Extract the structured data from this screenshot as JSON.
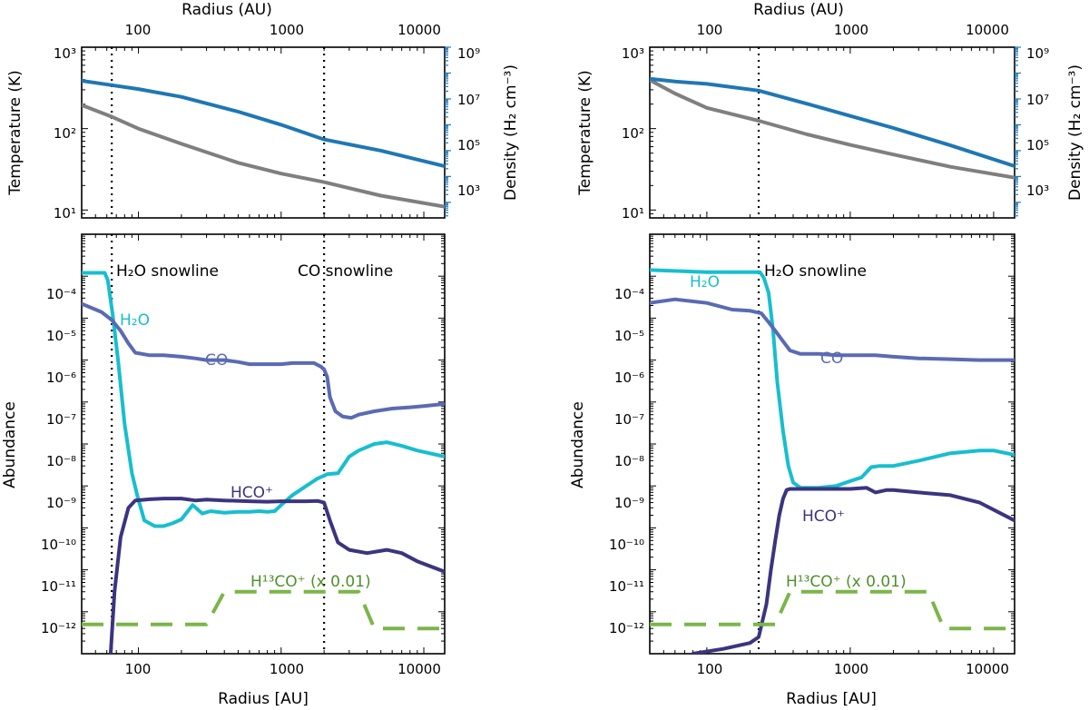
{
  "figure": {
    "panels": [
      {
        "top_x_axis_title": "Radius (AU)",
        "bottom_x_axis_title": "Radius [AU]",
        "temp_axis_title": "Temperature (K)",
        "dens_axis_title": "Density (H₂ cm⁻³)",
        "abund_axis_title": "Abundance",
        "x_tick_labels": [
          "100",
          "1000",
          "10000"
        ],
        "temp_tick_labels": [
          "10¹",
          "10²",
          "10³"
        ],
        "dens_tick_labels": [
          "10³",
          "10⁵",
          "10⁷",
          "10⁹"
        ],
        "abund_tick_labels": [
          "10⁻¹²",
          "10⁻¹¹",
          "10⁻¹⁰",
          "10⁻⁹",
          "10⁻⁸",
          "10⁻⁷",
          "10⁻⁶",
          "10⁻⁵",
          "10⁻⁴"
        ],
        "annotations": {
          "h2o_snowline": "H₂O snowline",
          "co_snowline": "CO snowline",
          "h2o": "H₂O",
          "co": "CO",
          "hco": "HCO⁺",
          "h13co": "H¹³CO⁺  (x 0.01)"
        }
      },
      {
        "top_x_axis_title": "Radius (AU)",
        "bottom_x_axis_title": "Radius [AU]",
        "temp_axis_title": "Temperature (K)",
        "dens_axis_title": "Density (H₂ cm⁻³)",
        "abund_axis_title": "Abundance",
        "x_tick_labels": [
          "100",
          "1000",
          "10000"
        ],
        "temp_tick_labels": [
          "10¹",
          "10²",
          "10³"
        ],
        "dens_tick_labels": [
          "10³",
          "10⁵",
          "10⁷",
          "10⁹"
        ],
        "abund_tick_labels": [
          "10⁻¹²",
          "10⁻¹¹",
          "10⁻¹⁰",
          "10⁻⁹",
          "10⁻⁸",
          "10⁻⁷",
          "10⁻⁶",
          "10⁻⁵",
          "10⁻⁴"
        ],
        "annotations": {
          "h2o_snowline": "H₂O snowline",
          "h2o": "H₂O",
          "co": "CO",
          "hco": "HCO⁺",
          "h13co": "H¹³CO⁺  (x 0.01)"
        }
      }
    ]
  },
  "colors": {
    "temperature": "#7f7f7f",
    "density": "#1f77b4",
    "density_axis": "#1f77b4",
    "h2o": "#17becf",
    "co": "#5a6ab4",
    "hco": "#3b3480",
    "h13co": "#7ab648",
    "snowline": "#000000"
  },
  "chart_data": [
    {
      "type": "line",
      "title": "Left panel - temperature and density profile",
      "xlabel": "Radius (AU)",
      "ylabel": "Temperature (K)",
      "y2label": "Density (H₂ cm⁻³)",
      "xscale": "log",
      "yscale": "log",
      "y2scale": "log",
      "xlim": [
        40,
        14000
      ],
      "ylim": [
        8,
        1000
      ],
      "y2lim": [
        250,
        1000000000.0
      ],
      "xticks": [
        100,
        1000,
        10000
      ],
      "yticks": [
        10,
        100,
        1000
      ],
      "y2ticks": [
        1000,
        100000,
        10000000,
        1000000000
      ],
      "vlines": [
        65,
        2000
      ],
      "series": [
        {
          "name": "Temperature",
          "axis": "left",
          "color_key": "temperature",
          "x": [
            40,
            65,
            100,
            200,
            500,
            1000,
            2000,
            5000,
            14000
          ],
          "y": [
            195,
            140,
            100,
            65,
            38,
            28,
            22,
            15,
            11
          ]
        },
        {
          "name": "Density",
          "axis": "right",
          "color_key": "density",
          "x": [
            40,
            65,
            100,
            200,
            500,
            1000,
            2000,
            5000,
            14000
          ],
          "y": [
            50000000.0,
            34000000.0,
            24000000.0,
            12000000.0,
            3200000.0,
            1000000.0,
            270000.0,
            100000.0,
            25000.0
          ]
        }
      ]
    },
    {
      "type": "line",
      "title": "Left panel - abundances",
      "xlabel": "Radius [AU]",
      "ylabel": "Abundance",
      "xscale": "log",
      "yscale": "log",
      "xlim": [
        40,
        14000
      ],
      "ylim": [
        1e-13,
        0.001
      ],
      "xticks": [
        100,
        1000,
        10000
      ],
      "yticks": [
        1e-12,
        1e-11,
        1e-10,
        1e-09,
        1e-08,
        1e-07,
        1e-06,
        1e-05,
        0.0001
      ],
      "vlines": [
        65,
        2000
      ],
      "series": [
        {
          "name": "H2O",
          "color_key": "h2o",
          "x": [
            40,
            58,
            61,
            66,
            72,
            80,
            90,
            98,
            110,
            130,
            150,
            175,
            200,
            240,
            280,
            320,
            400,
            500,
            600,
            700,
            800,
            900,
            1000,
            1200,
            1500,
            1800,
            2100,
            2500,
            3000,
            3500,
            4500,
            5500,
            7000,
            9000,
            14000
          ],
          "y": [
            0.00012,
            0.00012,
            8e-05,
            1.2e-05,
            1e-06,
            3e-08,
            2e-09,
            6e-10,
            1.5e-10,
            1.1e-10,
            1.1e-10,
            1.3e-10,
            1.6e-10,
            3.5e-10,
            2.2e-10,
            2.5e-10,
            2.3e-10,
            2.4e-10,
            2.4e-10,
            2.5e-10,
            2.4e-10,
            2.5e-10,
            3.5e-10,
            6e-10,
            1e-09,
            1.5e-09,
            1.9e-09,
            2e-09,
            5e-09,
            7e-09,
            1e-08,
            1.1e-08,
            9e-09,
            7e-09,
            5e-09
          ]
        },
        {
          "name": "CO",
          "color_key": "co",
          "x": [
            40,
            55,
            65,
            75,
            85,
            95,
            120,
            150,
            200,
            250,
            300,
            400,
            500,
            600,
            700,
            800,
            1000,
            1200,
            1500,
            1700,
            1900,
            2000,
            2100,
            2200,
            2400,
            2700,
            3100,
            3500,
            4500,
            6000,
            8000,
            10000,
            14000
          ],
          "y": [
            2.2e-05,
            1.4e-05,
            9e-06,
            5e-06,
            2.5e-06,
            1.5e-06,
            1.3e-06,
            1.3e-06,
            1.2e-06,
            1.1e-06,
            1e-06,
            1e-06,
            9e-07,
            8e-07,
            8e-07,
            8e-07,
            8e-07,
            8.5e-07,
            8.5e-07,
            8.5e-07,
            7e-07,
            6e-07,
            4e-07,
            1.3e-07,
            6e-08,
            4.5e-08,
            4.2e-08,
            5e-08,
            6e-08,
            7e-08,
            7.5e-08,
            8e-08,
            9e-08
          ]
        },
        {
          "name": "HCO+",
          "color_key": "hco",
          "x": [
            62,
            68,
            75,
            85,
            95,
            120,
            150,
            200,
            250,
            300,
            400,
            600,
            800,
            1000,
            1500,
            1800,
            2000,
            2200,
            2500,
            3000,
            4000,
            5500,
            7000,
            9000,
            14000
          ],
          "y": [
            2e-14,
            3e-12,
            6e-11,
            3e-10,
            4.5e-10,
            4.8e-10,
            5e-10,
            5e-10,
            4.5e-10,
            4.7e-10,
            4.5e-10,
            4.3e-10,
            4.2e-10,
            4.3e-10,
            4.3e-10,
            4.4e-10,
            4e-10,
            1.5e-10,
            4.5e-11,
            3e-11,
            2.5e-11,
            3e-11,
            2.5e-11,
            1.6e-11,
            9e-12
          ]
        },
        {
          "name": "H13CO+ (x 0.01)",
          "color_key": "h13co",
          "dashed": true,
          "x": [
            40,
            300,
            400,
            1800,
            3500,
            4500,
            14000
          ],
          "y": [
            5e-13,
            5e-13,
            3e-12,
            3e-12,
            3e-12,
            4e-13,
            4e-13
          ]
        }
      ]
    },
    {
      "type": "line",
      "title": "Right panel - temperature and density profile",
      "xlabel": "Radius (AU)",
      "ylabel": "Temperature (K)",
      "y2label": "Density (H₂ cm⁻³)",
      "xscale": "log",
      "yscale": "log",
      "y2scale": "log",
      "xlim": [
        40,
        14000
      ],
      "ylim": [
        8,
        1000
      ],
      "y2lim": [
        250,
        1000000000.0
      ],
      "xticks": [
        100,
        1000,
        10000
      ],
      "yticks": [
        10,
        100,
        1000
      ],
      "y2ticks": [
        1000,
        100000,
        10000000,
        1000000000
      ],
      "vlines": [
        230
      ],
      "series": [
        {
          "name": "Temperature",
          "axis": "left",
          "color_key": "temperature",
          "x": [
            40,
            60,
            100,
            230,
            500,
            1000,
            2000,
            5000,
            14000
          ],
          "y": [
            395,
            270,
            180,
            125,
            85,
            63,
            48,
            34,
            25
          ]
        },
        {
          "name": "Density",
          "axis": "right",
          "color_key": "density",
          "x": [
            40,
            60,
            100,
            230,
            500,
            1000,
            2000,
            5000,
            14000
          ],
          "y": [
            60000000.0,
            47000000.0,
            38000000.0,
            21000000.0,
            6500000.0,
            2200000.0,
            750000.0,
            160000.0,
            25000.0
          ]
        }
      ]
    },
    {
      "type": "line",
      "title": "Right panel - abundances",
      "xlabel": "Radius [AU]",
      "ylabel": "Abundance",
      "xscale": "log",
      "yscale": "log",
      "xlim": [
        40,
        14000
      ],
      "ylim": [
        1e-13,
        0.001
      ],
      "xticks": [
        100,
        1000,
        10000
      ],
      "yticks": [
        1e-12,
        1e-11,
        1e-10,
        1e-09,
        1e-08,
        1e-07,
        1e-06,
        1e-05,
        0.0001
      ],
      "vlines": [
        230
      ],
      "series": [
        {
          "name": "H2O",
          "color_key": "h2o",
          "x": [
            40,
            100,
            200,
            235,
            250,
            270,
            290,
            310,
            340,
            370,
            400,
            450,
            500,
            600,
            800,
            1000,
            1200,
            1400,
            1600,
            2000,
            3000,
            5000,
            8000,
            10000,
            14000
          ],
          "y": [
            0.00014,
            0.000125,
            0.000125,
            0.000125,
            9e-05,
            4e-05,
            5e-06,
            3e-07,
            2e-08,
            3e-09,
            1.2e-09,
            9e-10,
            9e-10,
            9e-10,
            1e-09,
            1.3e-09,
            1.6e-09,
            2.8e-09,
            3e-09,
            3e-09,
            4e-09,
            6e-09,
            7e-09,
            7e-09,
            5.5e-09
          ]
        },
        {
          "name": "CO",
          "color_key": "co",
          "x": [
            40,
            60,
            100,
            150,
            200,
            240,
            270,
            300,
            340,
            380,
            450,
            600,
            800,
            1000,
            1500,
            2000,
            3000,
            5000,
            8000,
            14000
          ],
          "y": [
            2.3e-05,
            2.8e-05,
            2.3e-05,
            1.6e-05,
            1.5e-05,
            1.3e-05,
            8e-06,
            5e-06,
            2.8e-06,
            1.7e-06,
            1.4e-06,
            1.4e-06,
            1.3e-06,
            1.3e-06,
            1.3e-06,
            1.2e-06,
            1.1e-06,
            1.05e-06,
            1e-06,
            1e-06
          ]
        },
        {
          "name": "HCO+",
          "color_key": "hco",
          "x": [
            80,
            130,
            200,
            230,
            260,
            280,
            300,
            320,
            340,
            360,
            380,
            400,
            600,
            1000,
            1300,
            1500,
            1800,
            2000,
            3000,
            5000,
            8000,
            14000
          ],
          "y": [
            1e-13,
            1.3e-13,
            1.8e-13,
            2.5e-13,
            1.5e-12,
            1e-11,
            5e-11,
            2e-10,
            5e-10,
            8e-10,
            8.5e-10,
            8.5e-10,
            8.5e-10,
            8.5e-10,
            9e-10,
            7e-10,
            8e-10,
            8e-10,
            7e-10,
            6e-10,
            4e-10,
            1.5e-10
          ]
        },
        {
          "name": "H13CO+ (x 0.01)",
          "color_key": "h13co",
          "dashed": true,
          "x": [
            40,
            300,
            380,
            3500,
            4500,
            14000
          ],
          "y": [
            5e-13,
            5e-13,
            3e-12,
            3e-12,
            4e-13,
            4e-13
          ]
        }
      ]
    }
  ]
}
